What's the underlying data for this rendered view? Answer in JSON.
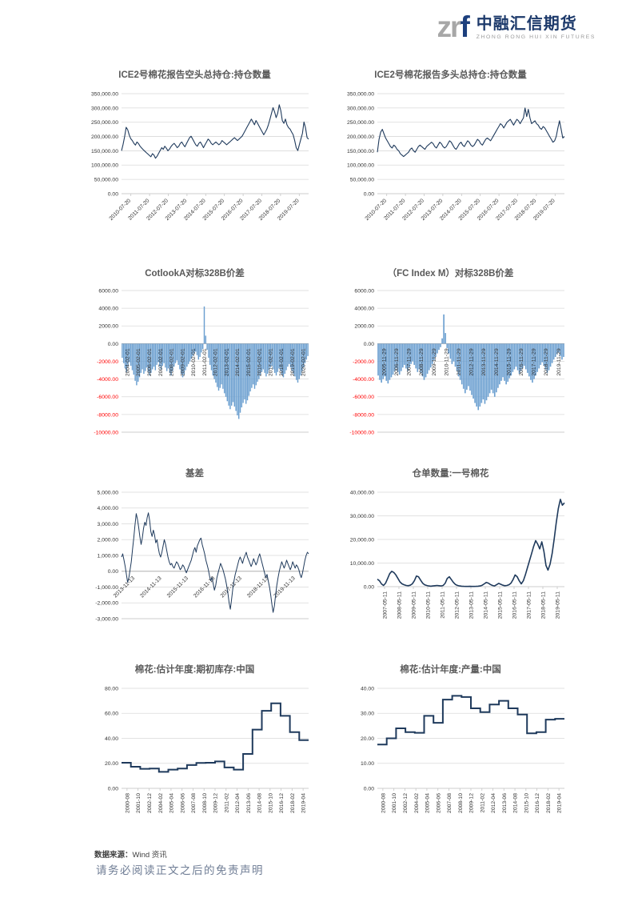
{
  "page": {
    "logo": {
      "mark_gray": "zr",
      "mark_blue": "f",
      "name_cn": "中融汇信期货",
      "name_en": "ZHONG RONG HUI XIN FUTURES"
    },
    "footer": {
      "source_label": "数据来源：",
      "source_value": "Wind 资讯",
      "disclaimer": "请务必阅读正文之后的免责声明"
    }
  },
  "colors": {
    "line_navy": "#1f3a5c",
    "bar_blue": "#6b9fd0",
    "grid": "#d9d9d9",
    "axis": "#c6c6c6",
    "tick_text": "#333333",
    "negative_tick_red": "#ff0000",
    "title_gray": "#595959"
  },
  "chart_data": [
    {
      "type": "line",
      "title": "ICE2号棉花报告空头总持仓:持仓数量",
      "color": "#1f3a5c",
      "stroke_width": 1.1,
      "ylim": [
        0,
        350000
      ],
      "yticks": [
        [
          0,
          "0.00"
        ],
        [
          50000,
          "50,000.00"
        ],
        [
          100000,
          "100,000.00"
        ],
        [
          150000,
          "150,000.00"
        ],
        [
          200000,
          "200,000.00"
        ],
        [
          250000,
          "250,000.00"
        ],
        [
          300000,
          "300,000.00"
        ],
        [
          350000,
          "350,000.00"
        ]
      ],
      "xlabels": [
        "2010-07-20",
        "2011-07-20",
        "2012-07-20",
        "2013-07-20",
        "2014-07-20",
        "2015-07-20",
        "2016-07-20",
        "2017-07-20",
        "2018-07-20",
        "2019-07-20"
      ],
      "values": [
        150000,
        172000,
        200000,
        232000,
        224000,
        205000,
        192000,
        186000,
        176000,
        170000,
        181000,
        175000,
        166000,
        160000,
        154000,
        149000,
        144000,
        139000,
        134000,
        129000,
        140000,
        135000,
        124000,
        131000,
        141000,
        151000,
        161000,
        155000,
        166000,
        159000,
        150000,
        156000,
        165000,
        171000,
        176000,
        169000,
        161000,
        166000,
        176000,
        181000,
        171000,
        164000,
        175000,
        186000,
        196000,
        201000,
        191000,
        181000,
        171000,
        166000,
        176000,
        181000,
        171000,
        161000,
        171000,
        181000,
        191000,
        186000,
        176000,
        171000,
        176000,
        181000,
        176000,
        171000,
        176000,
        186000,
        181000,
        176000,
        171000,
        176000,
        181000,
        186000,
        191000,
        196000,
        191000,
        186000,
        191000,
        196000,
        201000,
        211000,
        221000,
        231000,
        241000,
        251000,
        261000,
        251000,
        241000,
        256000,
        246000,
        236000,
        226000,
        216000,
        206000,
        216000,
        226000,
        241000,
        261000,
        281000,
        301000,
        286000,
        266000,
        281000,
        311000,
        291000,
        256000,
        246000,
        261000,
        241000,
        231000,
        226000,
        216000,
        206000,
        186000,
        161000,
        151000,
        171000,
        191000,
        211000,
        251000,
        231000,
        196000,
        191000
      ]
    },
    {
      "type": "line",
      "title": "ICE2号棉花报告多头总持仓:持仓数量",
      "color": "#1f3a5c",
      "stroke_width": 1.1,
      "ylim": [
        0,
        350000
      ],
      "yticks": [
        [
          0,
          "0.00"
        ],
        [
          50000,
          "50,000.00"
        ],
        [
          100000,
          "100,000.00"
        ],
        [
          150000,
          "150,000.00"
        ],
        [
          200000,
          "200,000.00"
        ],
        [
          250000,
          "250,000.00"
        ],
        [
          300000,
          "300,000.00"
        ],
        [
          350000,
          "350,000.00"
        ]
      ],
      "xlabels": [
        "2010-07-20",
        "2011-07-20",
        "2012-07-20",
        "2013-07-20",
        "2014-07-20",
        "2015-07-20",
        "2016-07-20",
        "2017-07-20",
        "2018-07-20",
        "2019-07-20"
      ],
      "values": [
        145000,
        190000,
        215000,
        225000,
        210000,
        195000,
        185000,
        175000,
        165000,
        160000,
        170000,
        165000,
        155000,
        150000,
        140000,
        135000,
        130000,
        135000,
        140000,
        145000,
        155000,
        160000,
        150000,
        145000,
        155000,
        165000,
        170000,
        165000,
        160000,
        155000,
        165000,
        170000,
        175000,
        180000,
        175000,
        165000,
        160000,
        170000,
        180000,
        175000,
        165000,
        160000,
        165000,
        175000,
        185000,
        180000,
        170000,
        160000,
        155000,
        165000,
        175000,
        180000,
        170000,
        165000,
        175000,
        185000,
        180000,
        170000,
        165000,
        170000,
        180000,
        190000,
        185000,
        175000,
        170000,
        180000,
        190000,
        195000,
        190000,
        185000,
        195000,
        205000,
        215000,
        225000,
        235000,
        245000,
        240000,
        230000,
        240000,
        250000,
        255000,
        260000,
        250000,
        240000,
        250000,
        260000,
        255000,
        245000,
        255000,
        265000,
        300000,
        270000,
        295000,
        265000,
        245000,
        250000,
        255000,
        245000,
        240000,
        230000,
        225000,
        235000,
        230000,
        220000,
        210000,
        200000,
        190000,
        180000,
        185000,
        200000,
        230000,
        255000,
        225000,
        195000,
        200000
      ]
    },
    {
      "type": "bar",
      "title": "CotlookA对标328B价差",
      "color": "#6b9fd0",
      "neg_red": true,
      "ylim": [
        -10000,
        6000
      ],
      "yticks": [
        [
          6000,
          "6000.00"
        ],
        [
          4000,
          "4000.00"
        ],
        [
          2000,
          "2000.00"
        ],
        [
          0,
          "0.00"
        ],
        [
          -2000,
          "-2000.00"
        ],
        [
          -4000,
          "-4000.00"
        ],
        [
          -6000,
          "-6000.00"
        ],
        [
          -8000,
          "-8000.00"
        ],
        [
          -10000,
          "-10000.00"
        ]
      ],
      "xlabels": [
        "2004-02-01",
        "2005-02-01",
        "2006-02-01",
        "2007-02-01",
        "2008-02-01",
        "2009-02-01",
        "2010-02-01",
        "2011-02-01",
        "2012-02-01",
        "2013-02-01",
        "2014-02-01",
        "2015-02-01",
        "2016-02-01",
        "2017-02-01",
        "2018-02-01",
        "2019-02-01",
        "2020-02-01"
      ],
      "values": [
        -1600,
        -2200,
        -2800,
        -3200,
        -2600,
        -2100,
        -2500,
        -3000,
        -3500,
        -4200,
        -4700,
        -4300,
        -3800,
        -3300,
        -2900,
        -3400,
        -3100,
        -2700,
        -3200,
        -3600,
        -3300,
        -2900,
        -2600,
        -3000,
        -2400,
        -2100,
        -2600,
        -2900,
        -2500,
        -2200,
        -2700,
        -3100,
        -2800,
        -3300,
        -3600,
        -3100,
        -2600,
        -2200,
        -1900,
        -2400,
        -2900,
        -3400,
        -3800,
        -3500,
        -3000,
        -2600,
        -2300,
        -2000,
        -1700,
        -1400,
        -1100,
        -900,
        -1300,
        -1800,
        -1500,
        -1000,
        -600,
        4200,
        900,
        -700,
        -1600,
        -2400,
        -3000,
        -3600,
        -4000,
        -4400,
        -4900,
        -5300,
        -5000,
        -4600,
        -5100,
        -5600,
        -6000,
        -6500,
        -7000,
        -7400,
        -7000,
        -6600,
        -7100,
        -7600,
        -8100,
        -8500,
        -7800,
        -7200,
        -6700,
        -6300,
        -6800,
        -6400,
        -5900,
        -5400,
        -5000,
        -4600,
        -5100,
        -4700,
        -4300,
        -4000,
        -3600,
        -3200,
        -2900,
        -3300,
        -3700,
        -3400,
        -3000,
        -2700,
        -2500,
        -2900,
        -3300,
        -3600,
        -3200,
        -2800,
        -3100,
        -3500,
        -3800,
        -3400,
        -3000,
        -2600,
        -2300,
        -2700,
        -3100,
        -3400,
        -3700,
        -4100,
        -4400,
        -4000,
        -3600,
        -3100,
        -2700,
        -2200,
        -1800,
        -1400
      ]
    },
    {
      "type": "bar",
      "title": "（FC Index M）对标328B价差",
      "color": "#6b9fd0",
      "neg_red": true,
      "ylim": [
        -10000,
        6000
      ],
      "yticks": [
        [
          6000,
          "6000.00"
        ],
        [
          4000,
          "4000.00"
        ],
        [
          2000,
          "2000.00"
        ],
        [
          0,
          "0.00"
        ],
        [
          -2000,
          "-2000.00"
        ],
        [
          -4000,
          "-4000.00"
        ],
        [
          -6000,
          "-6000.00"
        ],
        [
          -8000,
          "-8000.00"
        ],
        [
          -10000,
          "-10000.00"
        ]
      ],
      "xlabels": [
        "2005-11-29",
        "2006-11-29",
        "2007-11-29",
        "2008-11-29",
        "2009-11-29",
        "2010-11-29",
        "2011-11-29",
        "2012-11-29",
        "2013-11-29",
        "2014-11-29",
        "2015-11-29",
        "2016-11-29",
        "2017-11-29",
        "2018-11-29",
        "2019-11-29"
      ],
      "values": [
        -3600,
        -4100,
        -4400,
        -4000,
        -3700,
        -4200,
        -4500,
        -4100,
        -3800,
        -3500,
        -3100,
        -2800,
        -3200,
        -3500,
        -3100,
        -2700,
        -2400,
        -2800,
        -3100,
        -2700,
        -2300,
        -2000,
        -2400,
        -2800,
        -3200,
        -2900,
        -3300,
        -3700,
        -4100,
        -3800,
        -3400,
        -3000,
        -2700,
        -2300,
        -1900,
        -1500,
        -1100,
        -700,
        -400,
        600,
        3300,
        1200,
        -500,
        -1100,
        -1700,
        -2300,
        -2000,
        -2600,
        -3100,
        -3700,
        -4100,
        -4600,
        -5100,
        -5600,
        -5200,
        -4800,
        -5300,
        -5800,
        -6200,
        -6700,
        -7100,
        -7500,
        -7100,
        -6700,
        -6300,
        -6800,
        -6400,
        -6000,
        -5600,
        -5200,
        -5600,
        -6000,
        -5500,
        -5000,
        -4600,
        -4200,
        -3800,
        -4200,
        -4600,
        -4300,
        -3900,
        -3600,
        -3200,
        -2900,
        -2600,
        -3000,
        -3400,
        -3100,
        -2800,
        -2500,
        -2900,
        -3300,
        -3700,
        -4100,
        -4400,
        -4000,
        -3600,
        -3200,
        -2800,
        -2400,
        -2100,
        -2500,
        -2900,
        -3300,
        -3000,
        -2600,
        -2200,
        -1800,
        -1500,
        -1200,
        -1000,
        -1400,
        -1800,
        -1500
      ]
    },
    {
      "type": "line",
      "title": "基差",
      "color": "#1f3a5c",
      "stroke_width": 1.0,
      "ylim": [
        -3000,
        5000
      ],
      "yticks": [
        [
          5000,
          "5,000.00"
        ],
        [
          4000,
          "4,000.00"
        ],
        [
          3000,
          "3,000.00"
        ],
        [
          2000,
          "2,000.00"
        ],
        [
          1000,
          "1,000.00"
        ],
        [
          0,
          "0.00"
        ],
        [
          -1000,
          "-1,000.00"
        ],
        [
          -2000,
          "-2,000.00"
        ],
        [
          -3000,
          "-3,000.00"
        ]
      ],
      "xlabels": [
        "2013-11-13",
        "2014-11-13",
        "2015-11-13",
        "2016-11-13",
        "2017-11-13",
        "2018-11-13",
        "2019-11-13"
      ],
      "values": [
        900,
        1100,
        700,
        300,
        -200,
        -700,
        -400,
        100,
        600,
        1400,
        2100,
        2900,
        3650,
        3300,
        2800,
        2200,
        1700,
        2100,
        2700,
        3100,
        2900,
        3400,
        3700,
        3200,
        2500,
        2200,
        2600,
        2300,
        1800,
        2000,
        1500,
        1100,
        900,
        1200,
        1600,
        2000,
        1700,
        1300,
        900,
        600,
        400,
        500,
        300,
        200,
        400,
        600,
        500,
        300,
        100,
        200,
        400,
        300,
        100,
        -100,
        100,
        300,
        500,
        700,
        1000,
        1300,
        1500,
        1200,
        1600,
        1800,
        2000,
        2100,
        1700,
        1400,
        1100,
        700,
        400,
        100,
        -300,
        -600,
        -400,
        -800,
        -1200,
        -900,
        -400,
        -100,
        200,
        500,
        300,
        100,
        -200,
        -500,
        -900,
        -1400,
        -2000,
        -2400,
        -1800,
        -1100,
        -600,
        -200,
        100,
        400,
        700,
        900,
        700,
        500,
        800,
        1000,
        1200,
        900,
        700,
        500,
        300,
        500,
        800,
        600,
        400,
        600,
        900,
        1100,
        800,
        500,
        200,
        -100,
        -400,
        -200,
        -600,
        -1000,
        -1500,
        -2100,
        -2600,
        -2200,
        -1500,
        -900,
        -400,
        0,
        300,
        600,
        400,
        200,
        400,
        700,
        500,
        300,
        100,
        300,
        600,
        400,
        200,
        400,
        300,
        100,
        -200,
        -400,
        -100,
        300,
        700,
        1000,
        1200,
        1100
      ]
    },
    {
      "type": "line",
      "title": "仓单数量:一号棉花",
      "color": "#1f3a5c",
      "stroke_width": 1.6,
      "ylim": [
        0,
        40000
      ],
      "yticks": [
        [
          0,
          "0.00"
        ],
        [
          10000,
          "10,000.00"
        ],
        [
          20000,
          "20,000.00"
        ],
        [
          30000,
          "30,000.00"
        ],
        [
          40000,
          "40,000.00"
        ]
      ],
      "xlabels": [
        "2007-05-11",
        "2008-05-11",
        "2009-05-11",
        "2010-05-11",
        "2011-05-11",
        "2012-05-11",
        "2013-05-11",
        "2014-05-11",
        "2015-05-11",
        "2016-05-11",
        "2017-05-11",
        "2018-05-11",
        "2019-05-11"
      ],
      "values": [
        3200,
        2500,
        1200,
        500,
        1500,
        3500,
        5500,
        6500,
        6000,
        5000,
        3500,
        2000,
        1200,
        800,
        500,
        400,
        600,
        1200,
        2500,
        4500,
        4200,
        2800,
        1500,
        800,
        500,
        300,
        200,
        300,
        400,
        500,
        400,
        300,
        500,
        1500,
        3500,
        4200,
        3000,
        1800,
        900,
        500,
        300,
        200,
        150,
        100,
        100,
        150,
        100,
        100,
        150,
        200,
        300,
        600,
        1200,
        1800,
        1500,
        900,
        500,
        300,
        800,
        1400,
        1000,
        600,
        400,
        500,
        800,
        1500,
        3000,
        5000,
        4200,
        2500,
        1200,
        2500,
        5000,
        8000,
        11000,
        14000,
        17000,
        19500,
        18000,
        16000,
        19000,
        15000,
        9000,
        7000,
        9500,
        14000,
        20000,
        27000,
        33000,
        37000,
        34500,
        35500
      ]
    },
    {
      "type": "step",
      "title": "棉花:估计年度:期初库存:中国",
      "color": "#1f3a5c",
      "stroke_width": 2.0,
      "ylim": [
        0,
        80
      ],
      "yticks": [
        [
          0,
          "0.00"
        ],
        [
          20,
          "20.00"
        ],
        [
          40,
          "40.00"
        ],
        [
          60,
          "60.00"
        ],
        [
          80,
          "80.00"
        ]
      ],
      "xlabels": [
        "2000-08",
        "2001-10",
        "2002-12",
        "2004-02",
        "2005-04",
        "2006-06",
        "2007-08",
        "2008-10",
        "2009-12",
        "2011-02",
        "2012-04",
        "2013-06",
        "2014-08",
        "2015-10",
        "2016-12",
        "2018-02",
        "2019-04"
      ],
      "values": [
        20.5,
        17.3,
        15.6,
        15.9,
        13.2,
        15.0,
        15.8,
        18.6,
        20.3,
        20.5,
        21.5,
        16.7,
        15.0,
        27.5,
        47.0,
        62.0,
        68.0,
        58.0,
        45.0,
        38.5
      ]
    },
    {
      "type": "step",
      "title": "棉花:估计年度:产量:中国",
      "color": "#1f3a5c",
      "stroke_width": 2.0,
      "ylim": [
        0,
        40
      ],
      "yticks": [
        [
          0,
          "0.00"
        ],
        [
          10,
          "10.00"
        ],
        [
          20,
          "20.00"
        ],
        [
          30,
          "30.00"
        ],
        [
          40,
          "40.00"
        ]
      ],
      "xlabels": [
        "2000-08",
        "2001-10",
        "2002-12",
        "2004-02",
        "2005-04",
        "2006-06",
        "2007-08",
        "2008-10",
        "2009-12",
        "2011-02",
        "2012-04",
        "2013-06",
        "2014-08",
        "2015-10",
        "2016-12",
        "2018-02",
        "2019-04"
      ],
      "values": [
        17.5,
        20.0,
        24.0,
        22.5,
        22.2,
        29.0,
        26.2,
        35.5,
        37.0,
        36.5,
        32.0,
        30.5,
        33.5,
        35.0,
        32.0,
        29.5,
        22.0,
        22.5,
        27.5,
        27.8
      ]
    }
  ]
}
